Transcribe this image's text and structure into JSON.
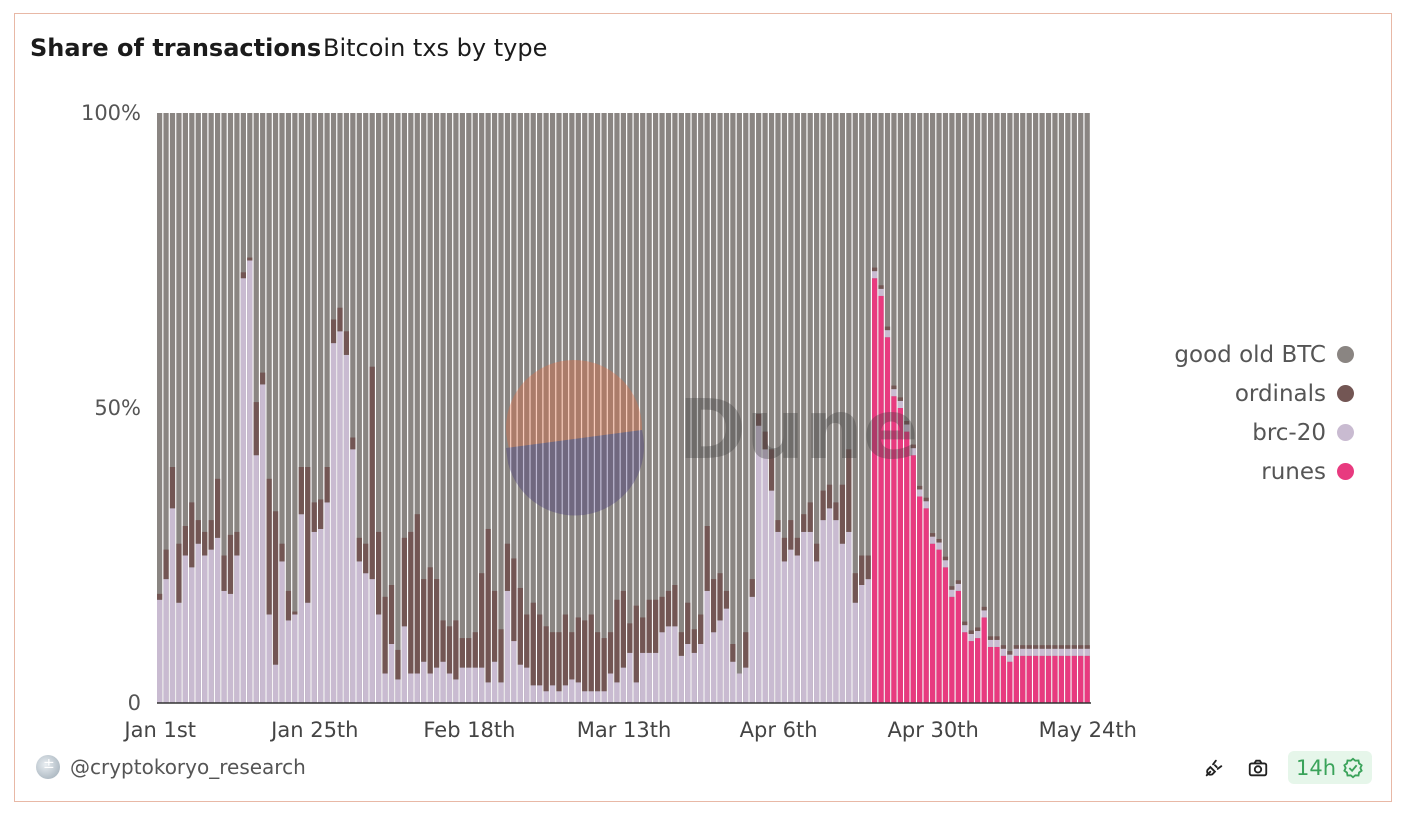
{
  "header": {
    "title": "Share of transactions",
    "subtitle": "Bitcoin txs by type"
  },
  "footer": {
    "author": "@cryptokoryo_research",
    "refresh": "14h"
  },
  "watermark": "Dune",
  "colors": {
    "btc": "#8a8582",
    "ordinals": "#735654",
    "brc20": "#c9bbd1",
    "runes": "#e83a7f",
    "border": "#e8b8a6"
  },
  "chart_data": {
    "type": "bar",
    "stacked": true,
    "normalized": true,
    "title": "Share of transactions",
    "subtitle": "Bitcoin txs by type",
    "y_ticks": [
      "0",
      "50%",
      "100%"
    ],
    "ylim": [
      0,
      100
    ],
    "x_ticks": [
      "Jan 1st",
      "Jan 25th",
      "Feb 18th",
      "Mar 13th",
      "Apr 6th",
      "Apr 30th",
      "May 24th"
    ],
    "x_tick_day_index": [
      0,
      24,
      48,
      72,
      96,
      120,
      144
    ],
    "legend": {
      "placement": "right",
      "entries": [
        {
          "name": "good old BTC",
          "color": "#8a8582"
        },
        {
          "name": "ordinals",
          "color": "#735654"
        },
        {
          "name": "brc-20",
          "color": "#c9bbd1"
        },
        {
          "name": "runes",
          "color": "#e83a7f"
        }
      ]
    },
    "series_order_bottom_to_top": [
      "runes",
      "brc-20",
      "ordinals",
      "good old BTC"
    ],
    "runes_launch_index": 111,
    "days": 145,
    "series": [
      {
        "name": "brc-20",
        "values": [
          17.5,
          21,
          33,
          17,
          25,
          23,
          27,
          25,
          26,
          28,
          19,
          18.5,
          25,
          72,
          75,
          42,
          54,
          15,
          6.5,
          24,
          14,
          15,
          32,
          17,
          29,
          29.5,
          34,
          61,
          63,
          59,
          43,
          24,
          22,
          21,
          15,
          5,
          10,
          4,
          13,
          5,
          5,
          7,
          5,
          6,
          7,
          5,
          4,
          6,
          6,
          6,
          6,
          3.5,
          7,
          3.5,
          19,
          10.5,
          6.5,
          6,
          3,
          3,
          2,
          3,
          2,
          3,
          4,
          3.5,
          2,
          2,
          2,
          2,
          5,
          3.5,
          6,
          8.5,
          3.5,
          8.5,
          8.5,
          8.5,
          12,
          13,
          13,
          8,
          10,
          8.5,
          10,
          19,
          12,
          14,
          16,
          7,
          5,
          6,
          18,
          47,
          43,
          36,
          29,
          24,
          26,
          25,
          29,
          29,
          24,
          31,
          33,
          31,
          27,
          29,
          17,
          20,
          21,
          14.5,
          7
        ],
        "runes_values": [
          72,
          69,
          62,
          52,
          50,
          46,
          42,
          35,
          33,
          27,
          26,
          23,
          18,
          19,
          12,
          10.5,
          11,
          14.5,
          9.5,
          9.5,
          8,
          7,
          8,
          8,
          8,
          8,
          8,
          8,
          8,
          8,
          8,
          8,
          8,
          8,
          8,
          8,
          8,
          8,
          8,
          8,
          8,
          8,
          8,
          8,
          8
        ]
      },
      {
        "name": "ordinals",
        "values": [
          1,
          5,
          7,
          10,
          5,
          11,
          4,
          4,
          5,
          10,
          6,
          10,
          4,
          1,
          0.5,
          9,
          2,
          23,
          26,
          3,
          5,
          0.5,
          8,
          23,
          5,
          5,
          6,
          4,
          4,
          4,
          2,
          4,
          5,
          36,
          14,
          13,
          10,
          5,
          15,
          24,
          27,
          14,
          18,
          15,
          7,
          8,
          10,
          5,
          5,
          6,
          16,
          26,
          12,
          9,
          8,
          14,
          13,
          9,
          14,
          12,
          11,
          9,
          10,
          12,
          8,
          11,
          12,
          13,
          10,
          9,
          7,
          14,
          13,
          5,
          13,
          6,
          9,
          9,
          6,
          6,
          7,
          4,
          7,
          4,
          5,
          11,
          9,
          8,
          3,
          3,
          0,
          6,
          3,
          2,
          3,
          7,
          2,
          4,
          5,
          3,
          3,
          5,
          3,
          5,
          4,
          3,
          10,
          14,
          5,
          5,
          4
        ]
      }
    ]
  }
}
